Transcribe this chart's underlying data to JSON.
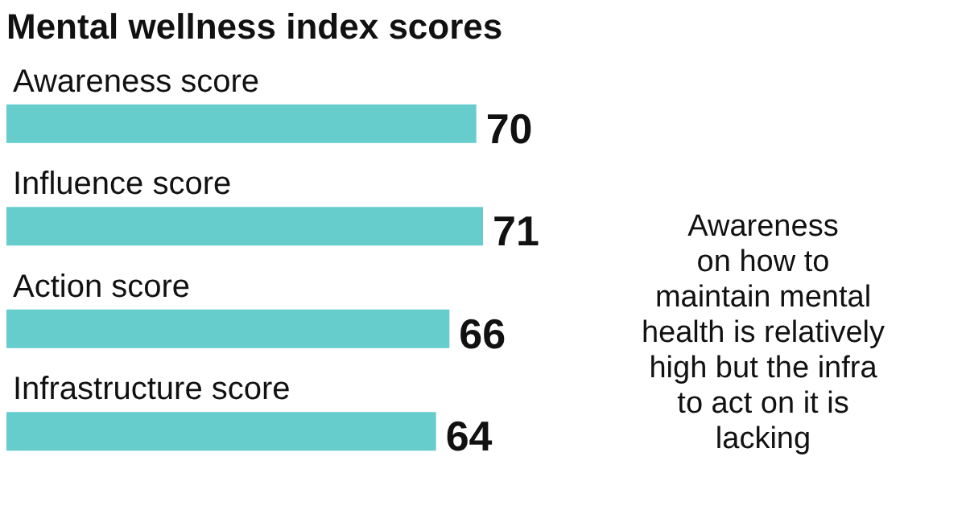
{
  "chart_data": {
    "type": "bar",
    "orientation": "horizontal",
    "title": "Mental wellness index scores",
    "categories": [
      "Awareness score",
      "Influence score",
      "Action score",
      "Infrastructure score"
    ],
    "values": [
      70,
      71,
      66,
      64
    ],
    "color": "#66cccc",
    "data_labels": true,
    "tick_labels": false,
    "annotations": [
      "Awareness\non how to\nmaintain mental\nhealth is relatively\nhigh but the infra\nto act on it is\nlacking"
    ]
  }
}
